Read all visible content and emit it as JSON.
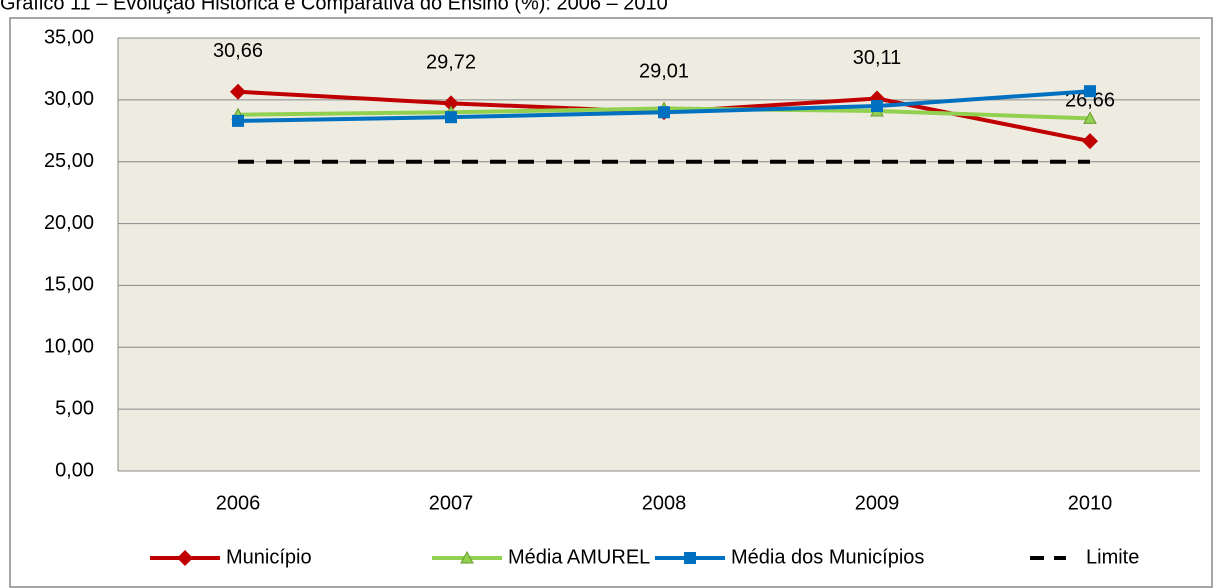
{
  "chart_data": {
    "type": "line",
    "title": "Gráfico 11 – Evolução Histórica e Comparativa do Ensino (%): 2006 – 2010",
    "categories": [
      "2006",
      "2007",
      "2008",
      "2009",
      "2010"
    ],
    "series": [
      {
        "name": "Município",
        "color": "#c00000",
        "marker": "diamond",
        "values": [
          30.66,
          29.72,
          29.01,
          30.11,
          26.66
        ],
        "value_labels": [
          "30,66",
          "29,72",
          "29,01",
          "30,11",
          "26,66"
        ]
      },
      {
        "name": "Média AMUREL",
        "color": "#92d050",
        "marker": "triangle",
        "values": [
          28.8,
          29.0,
          29.3,
          29.1,
          28.5
        ]
      },
      {
        "name": "Média dos Municípios",
        "color": "#0070c0",
        "marker": "square",
        "values": [
          28.3,
          28.6,
          29.0,
          29.5,
          30.7
        ]
      },
      {
        "name": "Limite",
        "color": "#000000",
        "dashed": true,
        "values": [
          25,
          25,
          25,
          25,
          25
        ]
      }
    ],
    "ylim": [
      0,
      35
    ],
    "yticks": [
      {
        "value": 0,
        "label": "0,00"
      },
      {
        "value": 5,
        "label": "5,00"
      },
      {
        "value": 10,
        "label": "10,00"
      },
      {
        "value": 15,
        "label": "15,00"
      },
      {
        "value": 20,
        "label": "20,00"
      },
      {
        "value": 25,
        "label": "25,00"
      },
      {
        "value": 30,
        "label": "30,00"
      },
      {
        "value": 35,
        "label": "35,00"
      }
    ],
    "grid": true
  }
}
